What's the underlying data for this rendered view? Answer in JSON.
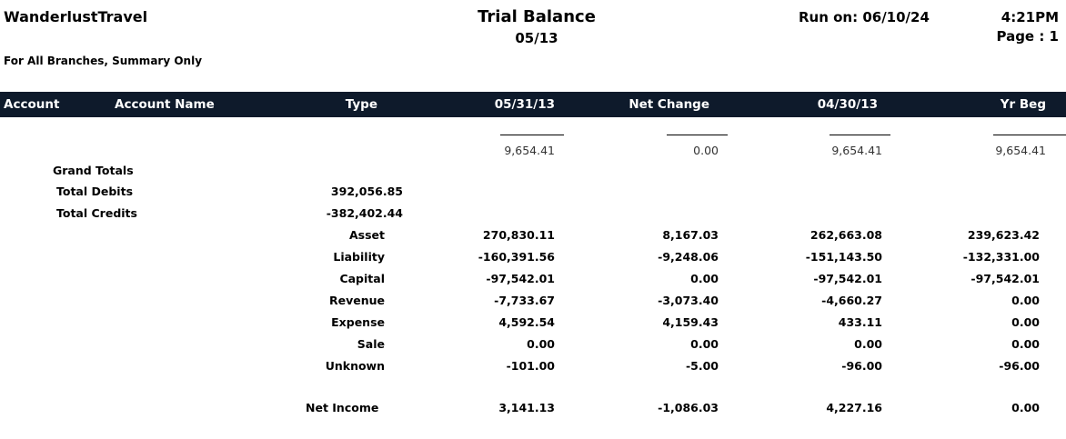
{
  "header": {
    "company": "WanderlustTravel",
    "report_title": "Trial  Balance",
    "period": "05/13",
    "run_on": "Run on: 06/10/24",
    "time": "4:21PM",
    "page": "Page : 1",
    "scope": "For All Branches, Summary Only"
  },
  "columns": {
    "account": "Account",
    "account_name": "Account Name",
    "type": "Type",
    "c1": "05/31/13",
    "c2": "Net Change",
    "c3": "04/30/13",
    "c4": "Yr Beg"
  },
  "totals_line": [
    "9,654.41",
    "0.00",
    "9,654.41",
    "9,654.41"
  ],
  "summary": {
    "grand_totals": "Grand Totals",
    "total_debits_label": "Total Debits",
    "total_debits": "392,056.85",
    "total_credits_label": "Total Credits",
    "total_credits": "-382,402.44"
  },
  "rows": [
    {
      "type": "Asset",
      "v1": "270,830.11",
      "v2": "8,167.03",
      "v3": "262,663.08",
      "v4": "239,623.42"
    },
    {
      "type": "Liability",
      "v1": "-160,391.56",
      "v2": "-9,248.06",
      "v3": "-151,143.50",
      "v4": "-132,331.00"
    },
    {
      "type": "Capital",
      "v1": "-97,542.01",
      "v2": "0.00",
      "v3": "-97,542.01",
      "v4": "-97,542.01"
    },
    {
      "type": "Revenue",
      "v1": "-7,733.67",
      "v2": "-3,073.40",
      "v3": "-4,660.27",
      "v4": "0.00"
    },
    {
      "type": "Expense",
      "v1": "4,592.54",
      "v2": "4,159.43",
      "v3": "433.11",
      "v4": "0.00"
    },
    {
      "type": "Sale",
      "v1": "0.00",
      "v2": "0.00",
      "v3": "0.00",
      "v4": "0.00"
    },
    {
      "type": "Unknown",
      "v1": "-101.00",
      "v2": "-5.00",
      "v3": "-96.00",
      "v4": "-96.00"
    }
  ],
  "net_income": {
    "label": "Net Income",
    "v1": "3,141.13",
    "v2": "-1,086.03",
    "v3": "4,227.16",
    "v4": "0.00"
  },
  "colors": {
    "header_bar": "#0e1a2b",
    "header_text": "#ffffff"
  }
}
